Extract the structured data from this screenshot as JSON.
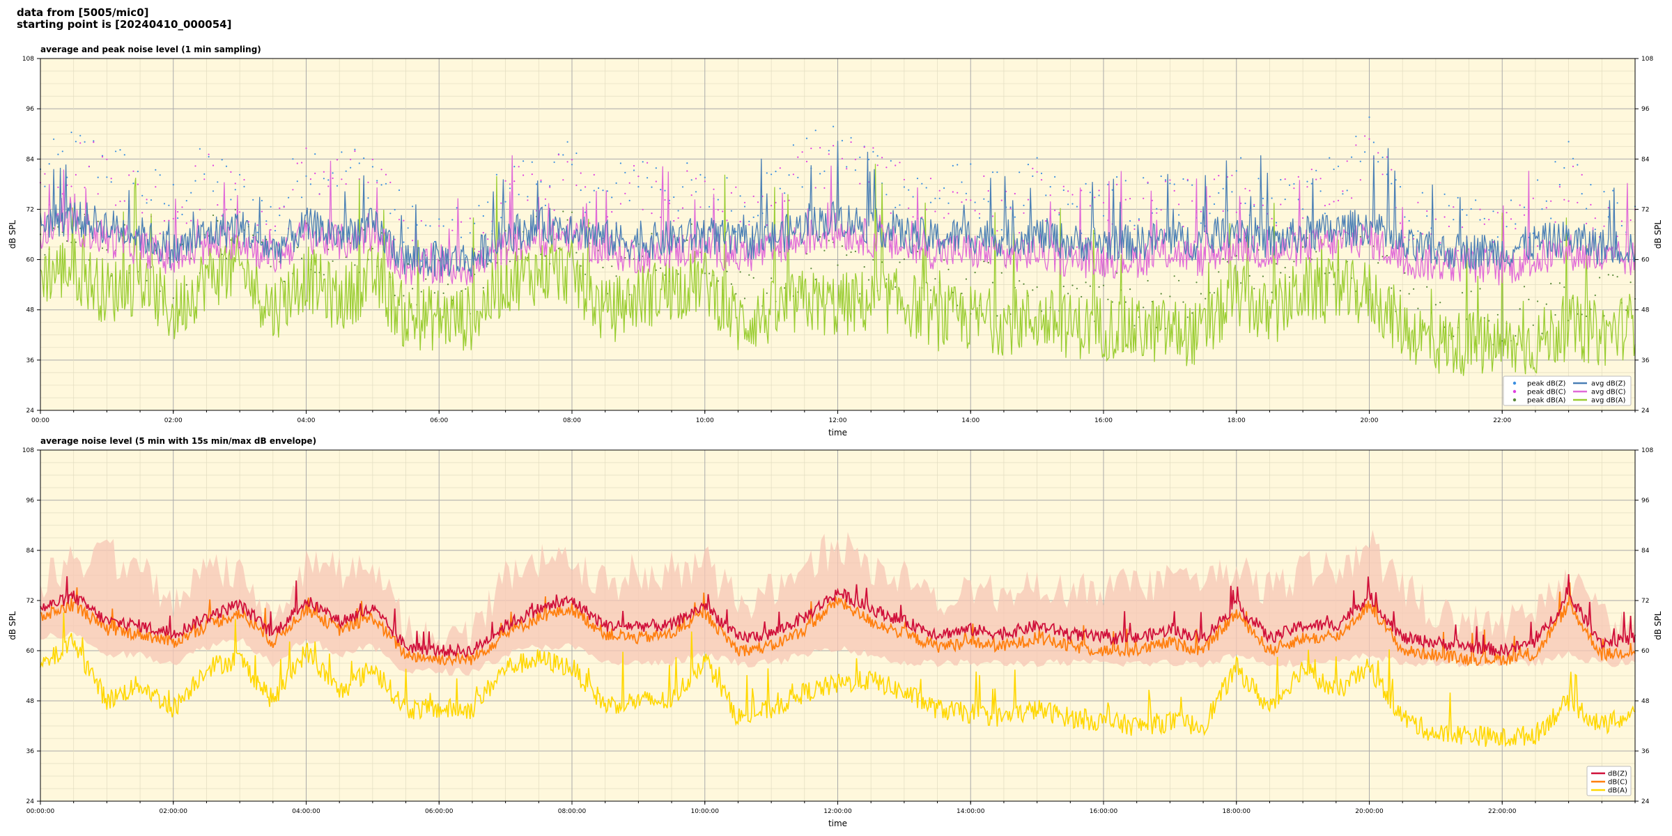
{
  "header": {
    "line1": "data from [5005/mic0]",
    "line2": "starting point is [20240410_000054]"
  },
  "colors": {
    "plot_bg": "#fff8dc",
    "z_avg_1": "#4a7fb5",
    "c_avg_1": "#e06ad8",
    "a_avg_1": "#9acd32",
    "z_peak": "#3b8fe0",
    "c_peak": "#e040e0",
    "a_peak": "#5a8a3a",
    "z_2": "#d0103a",
    "c_2": "#ff7f0e",
    "a_2": "#ffd700",
    "envelope": "#f7c7b5"
  },
  "chart_data": [
    {
      "type": "line",
      "title": "average and peak noise level (1 min sampling)",
      "xlabel": "time",
      "ylabel": "dB SPL",
      "ylim": [
        24,
        108
      ],
      "xlim_hours": [
        0,
        24
      ],
      "y_ticks": [
        "24",
        "36",
        "48",
        "60",
        "72",
        "84",
        "96",
        "108"
      ],
      "x_ticks": [
        "00:00",
        "02:00",
        "04:00",
        "06:00",
        "08:00",
        "10:00",
        "12:00",
        "14:00",
        "16:00",
        "18:00",
        "20:00",
        "22:00"
      ],
      "grid": true,
      "legend_position": "bottom-right",
      "legend": [
        "peak dB(Z)",
        "peak dB(C)",
        "peak dB(A)",
        "avg dB(Z)",
        "avg dB(C)",
        "avg dB(A)"
      ],
      "x": [
        0,
        0.5,
        1,
        1.5,
        2,
        2.5,
        3,
        3.5,
        4,
        4.5,
        5,
        5.5,
        6,
        6.5,
        7,
        7.5,
        8,
        8.5,
        9,
        9.5,
        10,
        10.5,
        11,
        11.5,
        12,
        12.5,
        13,
        13.5,
        14,
        14.5,
        15,
        15.5,
        16,
        16.5,
        17,
        17.5,
        18,
        18.5,
        19,
        19.5,
        20,
        20.5,
        21,
        21.5,
        22,
        22.5,
        23,
        23.5,
        24
      ],
      "series": [
        {
          "name": "avg dB(Z)",
          "values": [
            69,
            70,
            68,
            66,
            62,
            66,
            68,
            62,
            68,
            66,
            68,
            60,
            60,
            60,
            66,
            68,
            68,
            65,
            64,
            65,
            66,
            64,
            65,
            68,
            70,
            68,
            66,
            65,
            66,
            65,
            66,
            64,
            64,
            64,
            65,
            64,
            68,
            64,
            66,
            67,
            68,
            63,
            62,
            62,
            62,
            64,
            65,
            63,
            63
          ]
        },
        {
          "name": "avg dB(C)",
          "values": [
            67,
            68,
            65,
            63,
            60,
            63,
            65,
            60,
            66,
            64,
            66,
            58,
            58,
            58,
            63,
            65,
            66,
            62,
            61,
            62,
            63,
            61,
            62,
            65,
            67,
            65,
            63,
            62,
            62,
            61,
            62,
            60,
            60,
            60,
            62,
            60,
            64,
            61,
            63,
            64,
            65,
            60,
            59,
            59,
            58,
            60,
            62,
            60,
            60
          ]
        },
        {
          "name": "avg dB(A)",
          "values": [
            57,
            58,
            52,
            55,
            47,
            56,
            58,
            48,
            56,
            50,
            56,
            46,
            46,
            46,
            55,
            57,
            57,
            47,
            51,
            53,
            55,
            45,
            47,
            50,
            49,
            50,
            50,
            46,
            46,
            45,
            46,
            44,
            44,
            43,
            43,
            42,
            52,
            46,
            53,
            52,
            52,
            44,
            40,
            40,
            39,
            40,
            44,
            42,
            45
          ]
        },
        {
          "name": "peak dB(Z)",
          "values": [
            78,
            84,
            82,
            76,
            72,
            80,
            74,
            68,
            82,
            80,
            80,
            66,
            64,
            64,
            76,
            78,
            80,
            72,
            80,
            76,
            74,
            72,
            76,
            82,
            84,
            82,
            76,
            74,
            76,
            72,
            76,
            70,
            72,
            72,
            74,
            72,
            78,
            72,
            76,
            76,
            86,
            72,
            68,
            66,
            66,
            70,
            80,
            70,
            70
          ]
        },
        {
          "name": "peak dB(C)",
          "values": [
            76,
            82,
            80,
            74,
            70,
            78,
            72,
            66,
            80,
            78,
            78,
            64,
            62,
            62,
            74,
            76,
            78,
            70,
            78,
            74,
            72,
            70,
            74,
            80,
            82,
            80,
            74,
            72,
            74,
            70,
            74,
            68,
            70,
            70,
            72,
            70,
            76,
            70,
            74,
            74,
            84,
            70,
            66,
            64,
            64,
            68,
            78,
            68,
            68
          ]
        },
        {
          "name": "peak dB(A)",
          "values": [
            64,
            66,
            60,
            62,
            54,
            64,
            66,
            56,
            64,
            58,
            64,
            52,
            52,
            52,
            62,
            64,
            64,
            54,
            58,
            60,
            62,
            52,
            54,
            58,
            56,
            57,
            57,
            52,
            52,
            51,
            52,
            50,
            50,
            49,
            49,
            48,
            60,
            52,
            60,
            58,
            58,
            50,
            46,
            46,
            45,
            46,
            50,
            48,
            50
          ]
        }
      ]
    },
    {
      "type": "line",
      "title": "average noise level (5 min with 15s min/max dB envelope)",
      "xlabel": "time",
      "ylabel": "dB SPL",
      "ylim": [
        24,
        108
      ],
      "xlim_hours": [
        0,
        24
      ],
      "y_ticks": [
        "24",
        "36",
        "48",
        "60",
        "72",
        "84",
        "96",
        "108"
      ],
      "x_ticks": [
        "00:00:00",
        "02:00:00",
        "04:00:00",
        "06:00:00",
        "08:00:00",
        "10:00:00",
        "12:00:00",
        "14:00:00",
        "16:00:00",
        "18:00:00",
        "20:00:00",
        "22:00:00"
      ],
      "grid": true,
      "legend_position": "bottom-right",
      "legend": [
        "dB(Z)",
        "dB(C)",
        "dB(A)"
      ],
      "x": [
        0,
        0.5,
        1,
        1.5,
        2,
        2.5,
        3,
        3.5,
        4,
        4.5,
        5,
        5.5,
        6,
        6.5,
        7,
        7.5,
        8,
        8.5,
        9,
        9.5,
        10,
        10.5,
        11,
        11.5,
        12,
        12.5,
        13,
        13.5,
        14,
        14.5,
        15,
        15.5,
        16,
        16.5,
        17,
        17.5,
        18,
        18.5,
        19,
        19.5,
        20,
        20.5,
        21,
        21.5,
        22,
        22.5,
        23,
        23.5,
        24
      ],
      "series": [
        {
          "name": "dB(Z)",
          "values": [
            70,
            73,
            67,
            66,
            64,
            68,
            71,
            64,
            72,
            67,
            70,
            61,
            60,
            60,
            66,
            70,
            72,
            66,
            66,
            66,
            71,
            63,
            64,
            68,
            74,
            70,
            67,
            64,
            65,
            64,
            66,
            64,
            63,
            63,
            65,
            63,
            71,
            63,
            66,
            66,
            73,
            63,
            62,
            61,
            60,
            62,
            73,
            62,
            63
          ]
        },
        {
          "name": "dB(C)",
          "values": [
            68,
            71,
            65,
            64,
            62,
            66,
            69,
            62,
            70,
            65,
            68,
            59,
            58,
            58,
            64,
            68,
            70,
            64,
            63,
            64,
            69,
            60,
            61,
            65,
            72,
            67,
            64,
            61,
            62,
            61,
            63,
            61,
            60,
            60,
            62,
            60,
            69,
            60,
            63,
            63,
            71,
            60,
            59,
            58,
            58,
            59,
            71,
            59,
            60
          ]
        },
        {
          "name": "dB(A)",
          "values": [
            56,
            62,
            48,
            52,
            46,
            56,
            58,
            48,
            60,
            50,
            56,
            46,
            46,
            46,
            56,
            58,
            56,
            47,
            48,
            48,
            58,
            44,
            46,
            50,
            52,
            53,
            50,
            46,
            45,
            44,
            46,
            44,
            43,
            42,
            43,
            42,
            56,
            46,
            56,
            50,
            56,
            44,
            40,
            40,
            39,
            40,
            48,
            42,
            45
          ]
        },
        {
          "name": "max envelope",
          "values": [
            82,
            86,
            88,
            84,
            76,
            84,
            84,
            74,
            86,
            84,
            86,
            70,
            68,
            68,
            82,
            86,
            86,
            80,
            84,
            84,
            86,
            76,
            80,
            86,
            90,
            86,
            82,
            78,
            80,
            78,
            82,
            78,
            80,
            80,
            82,
            82,
            84,
            80,
            84,
            84,
            90,
            80,
            74,
            72,
            72,
            74,
            84,
            72,
            72
          ]
        },
        {
          "name": "min envelope",
          "values": [
            62,
            63,
            58,
            58,
            56,
            60,
            62,
            56,
            62,
            58,
            60,
            54,
            54,
            54,
            58,
            60,
            60,
            56,
            56,
            56,
            58,
            56,
            56,
            58,
            60,
            58,
            56,
            56,
            56,
            56,
            56,
            56,
            56,
            56,
            56,
            56,
            58,
            56,
            56,
            56,
            58,
            56,
            56,
            56,
            56,
            56,
            58,
            56,
            56
          ]
        }
      ]
    }
  ]
}
